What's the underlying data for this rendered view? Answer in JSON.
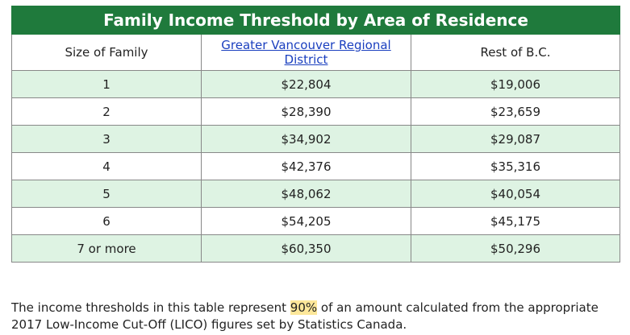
{
  "table": {
    "title": "Family Income Threshold by Area of Residence",
    "header": [
      "Size of Family",
      "Greater Vancouver Regional District",
      "Rest of B.C."
    ],
    "rows": [
      [
        "1",
        "$22,804",
        "$19,006"
      ],
      [
        "2",
        "$28,390",
        "$23,659"
      ],
      [
        "3",
        "$34,902",
        "$29,087"
      ],
      [
        "4",
        "$42,376",
        "$35,316"
      ],
      [
        "5",
        "$48,062",
        "$40,054"
      ],
      [
        "6",
        "$54,205",
        "$45,175"
      ],
      [
        "7 or more",
        "$60,350",
        "$50,296"
      ]
    ]
  },
  "note": {
    "before": "The income thresholds in this table represent ",
    "highlight": "90%",
    "after": " of an amount calculated from the appropriate 2017 Low-Income Cut-Off (LICO) figures set by Statistics Canada."
  }
}
